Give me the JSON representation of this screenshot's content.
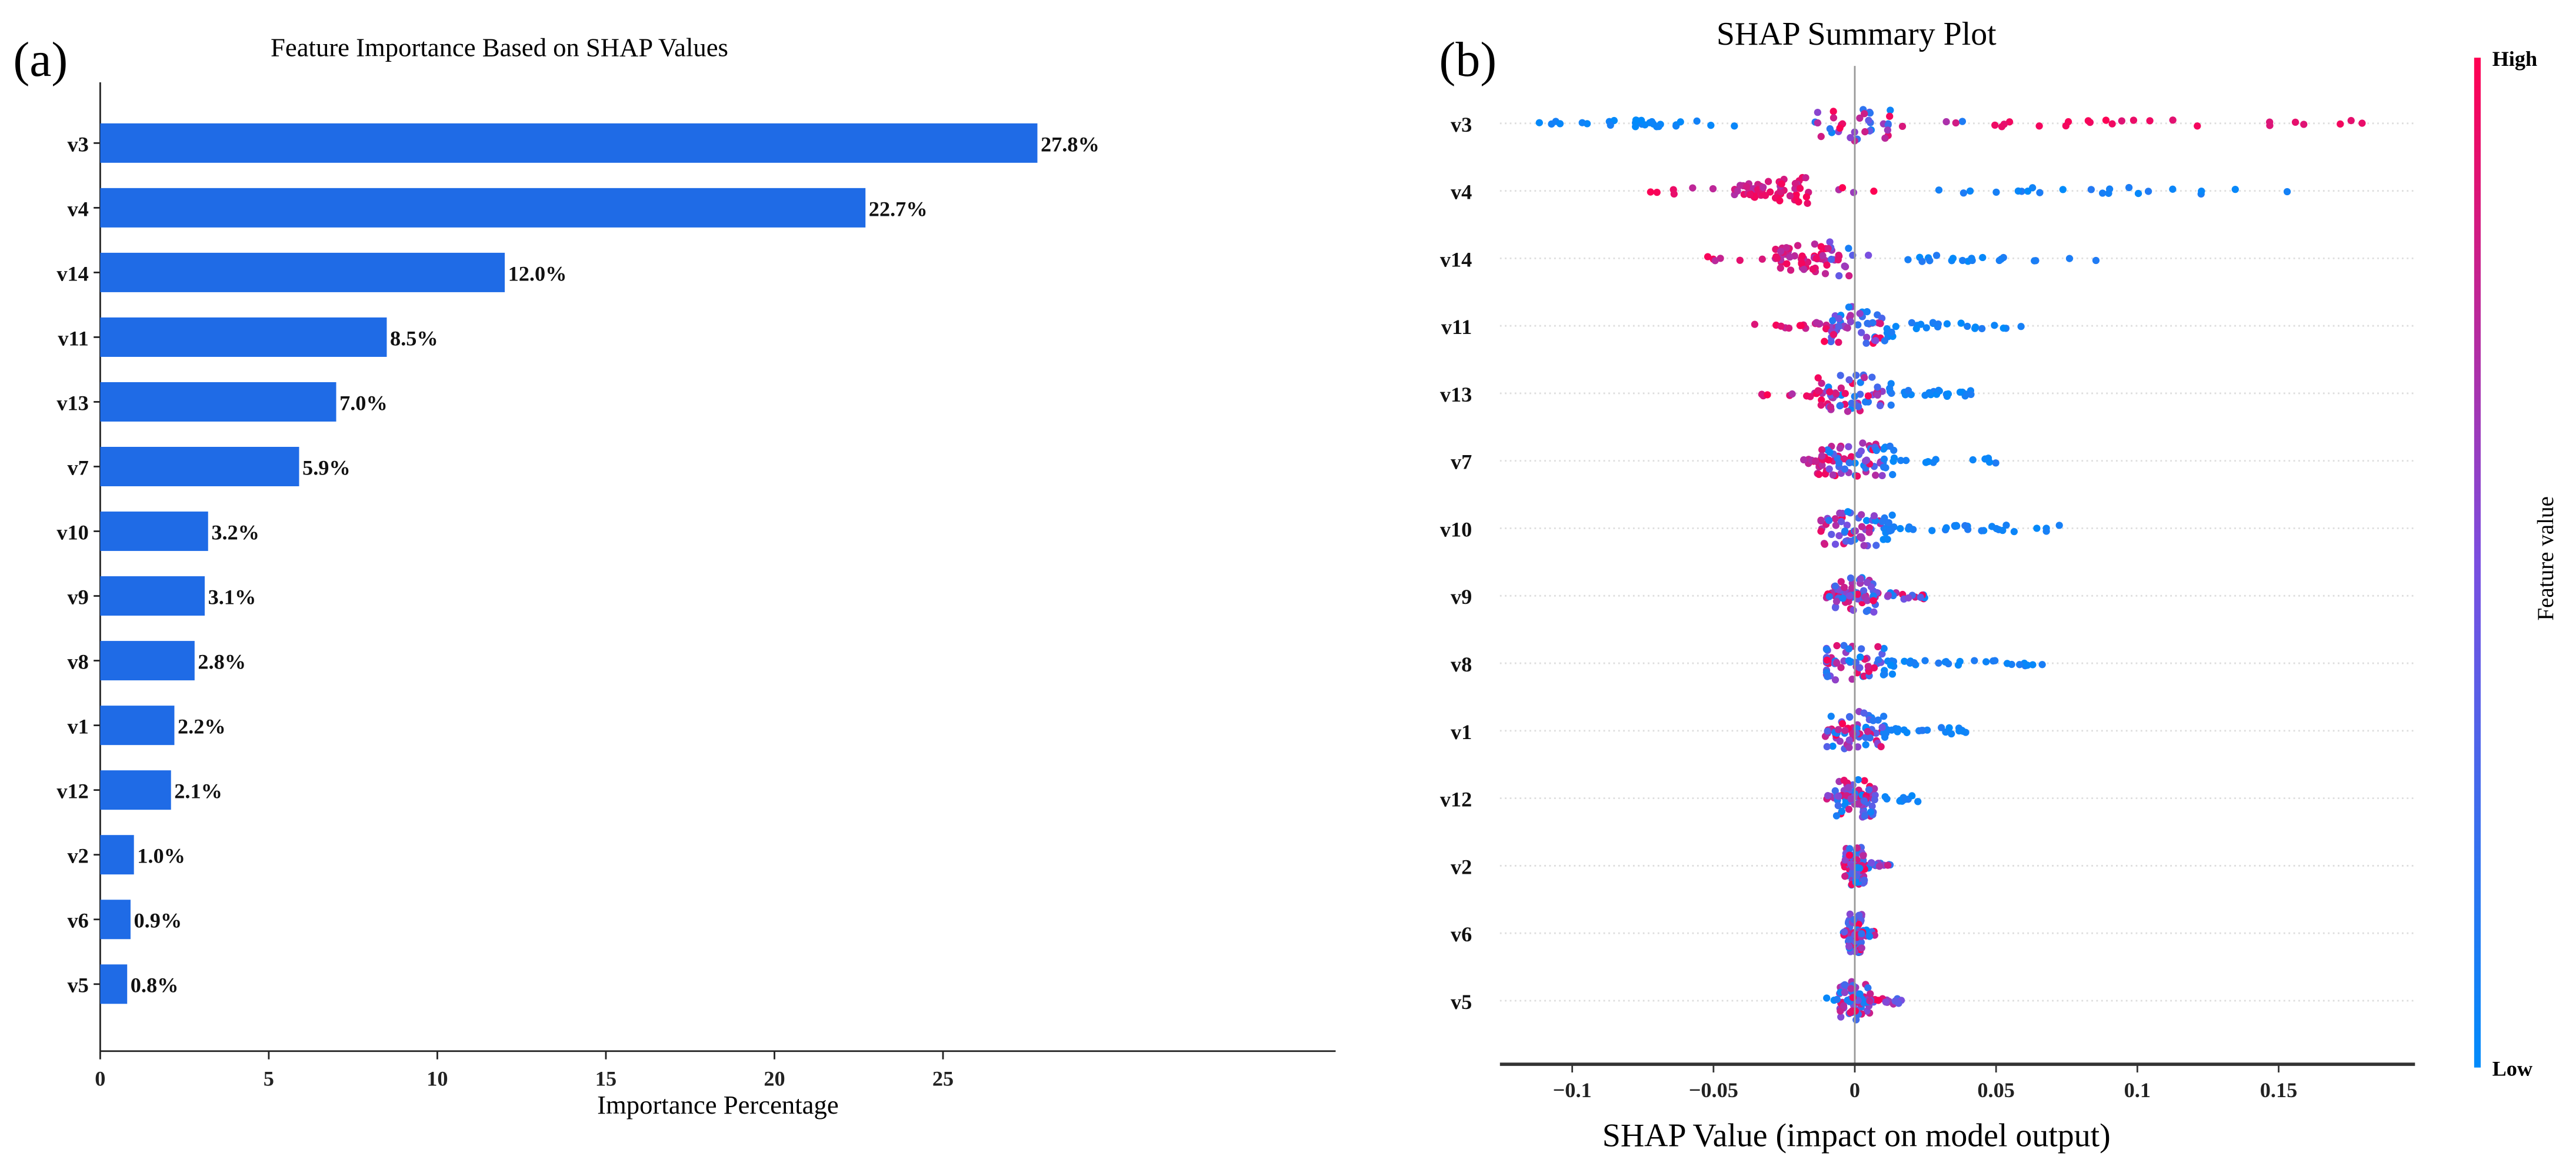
{
  "chart_data": [
    {
      "type": "bar",
      "panel_label": "(a)",
      "title": "Feature Importance Based on SHAP Values",
      "xlabel": "Importance Percentage",
      "ylabel": "",
      "xlim": [
        0,
        29.3
      ],
      "xticks": [
        "0",
        "5",
        "10",
        "15",
        "20",
        "25"
      ],
      "categories": [
        "v3",
        "v4",
        "v14",
        "v11",
        "v13",
        "v7",
        "v10",
        "v9",
        "v8",
        "v1",
        "v12",
        "v2",
        "v6",
        "v5"
      ],
      "values": [
        27.8,
        22.7,
        12.0,
        8.5,
        7.0,
        5.9,
        3.2,
        3.1,
        2.8,
        2.2,
        2.1,
        1.0,
        0.9,
        0.8
      ],
      "data_labels": [
        "27.8%",
        "22.7%",
        "12.0%",
        "8.5%",
        "7.0%",
        "5.9%",
        "3.2%",
        "3.1%",
        "2.8%",
        "2.2%",
        "2.1%",
        "1.0%",
        "0.9%",
        "0.8%"
      ],
      "bar_color": "#1f6be6"
    },
    {
      "type": "scatter",
      "panel_label": "(b)",
      "title": "SHAP Summary Plot",
      "xlabel": "SHAP Value (impact on model output)",
      "xlim": [
        -0.127,
        0.2
      ],
      "xticks": [
        "−0.1",
        "−0.05",
        "0",
        "0.05",
        "0.1",
        "0.15"
      ],
      "xtick_values": [
        -0.1,
        -0.05,
        0,
        0.05,
        0.1,
        0.15
      ],
      "colorbar": {
        "label": "Feature value",
        "high": "High",
        "low": "Low",
        "high_color": "#ff0052",
        "low_color": "#008bfb"
      },
      "features": [
        {
          "name": "v3",
          "min": -0.112,
          "max": 0.183,
          "low_side": "negative"
        },
        {
          "name": "v4",
          "min": -0.075,
          "max": 0.168,
          "low_side": "positive"
        },
        {
          "name": "v14",
          "min": -0.055,
          "max": 0.09,
          "low_side": "positive"
        },
        {
          "name": "v11",
          "min": -0.037,
          "max": 0.06,
          "low_side": "positive"
        },
        {
          "name": "v13",
          "min": -0.045,
          "max": 0.047,
          "low_side": "positive"
        },
        {
          "name": "v7",
          "min": -0.022,
          "max": 0.053,
          "low_side": "positive"
        },
        {
          "name": "v10",
          "min": -0.012,
          "max": 0.073,
          "low_side": "positive"
        },
        {
          "name": "v9",
          "min": -0.01,
          "max": 0.025,
          "low_side": "mixed"
        },
        {
          "name": "v8",
          "min": -0.01,
          "max": 0.068,
          "low_side": "positive"
        },
        {
          "name": "v1",
          "min": -0.012,
          "max": 0.04,
          "low_side": "positive"
        },
        {
          "name": "v12",
          "min": -0.01,
          "max": 0.025,
          "low_side": "positive"
        },
        {
          "name": "v2",
          "min": -0.004,
          "max": 0.013,
          "low_side": "mixed"
        },
        {
          "name": "v6",
          "min": -0.004,
          "max": 0.008,
          "low_side": "mixed"
        },
        {
          "name": "v5",
          "min": -0.01,
          "max": 0.017,
          "low_side": "mixed"
        }
      ]
    }
  ]
}
